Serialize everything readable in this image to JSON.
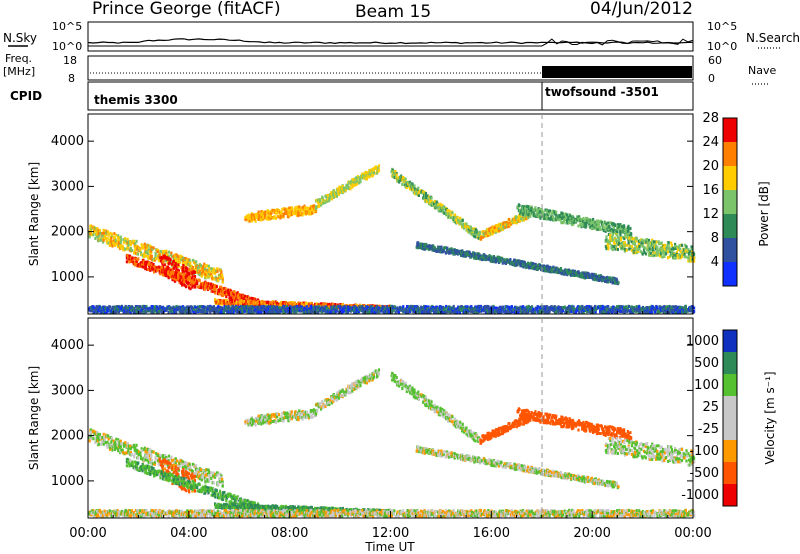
{
  "header": {
    "station": "Prince George (fitACF)",
    "beam": "Beam 15",
    "date": "04/Jun/2012"
  },
  "strip_nsky": {
    "left_label": "N.Sky",
    "left_ticks": [
      "10^5",
      "10^0"
    ],
    "right_ticks": [
      "10^5",
      "10^0"
    ],
    "right_label": "N.Search"
  },
  "strip_freq": {
    "left_label_1": "Freq.",
    "left_label_2": "[MHz]",
    "left_ticks": [
      "18",
      "8"
    ],
    "right_ticks": [
      "60",
      "0"
    ],
    "right_label": "Nave"
  },
  "strip_cpid": {
    "label": "CPID",
    "programs": [
      {
        "name": "themis 3300",
        "start_ut": "00:00",
        "end_ut": "18:00"
      },
      {
        "name": "twofsound -3501",
        "start_ut": "18:00",
        "end_ut": "24:00"
      }
    ]
  },
  "chart_data": [
    {
      "type": "heatmap",
      "title": "",
      "xlabel": "Time UT",
      "ylabel": "Slant Range [km]",
      "x_range_ut_hours": [
        0,
        24
      ],
      "x_ticks": [
        "00:00",
        "04:00",
        "08:00",
        "12:00",
        "16:00",
        "20:00",
        "00:00"
      ],
      "y_range_km": [
        180,
        4600
      ],
      "y_ticks": [
        1000,
        2000,
        3000,
        4000
      ],
      "colorbar": {
        "label": "Power [dB]",
        "ticks": [
          "4",
          "8",
          "12",
          "16",
          "20",
          "24",
          "28"
        ],
        "colors": [
          "#1030ff",
          "#3050a0",
          "#2e8b57",
          "#7cc46a",
          "#ffcc00",
          "#ff7f00",
          "#ee0000"
        ]
      }
    },
    {
      "type": "heatmap",
      "title": "",
      "xlabel": "Time UT",
      "ylabel": "Slant Range [km]",
      "x_range_ut_hours": [
        0,
        24
      ],
      "x_ticks": [
        "00:00",
        "04:00",
        "08:00",
        "12:00",
        "16:00",
        "20:00",
        "00:00"
      ],
      "y_range_km": [
        180,
        4600
      ],
      "y_ticks": [
        1000,
        2000,
        3000,
        4000
      ],
      "colorbar": {
        "label": "Velocity  [m s⁻¹]",
        "ticks": [
          "1000",
          "500",
          "100",
          "25",
          "-25",
          "-100",
          "-500",
          "-1000"
        ],
        "colors": [
          "#1030c0",
          "#2e8b57",
          "#55c030",
          "#c8c8c8",
          "#c8c8c8",
          "#ff9900",
          "#ff5500",
          "#ee0000"
        ]
      }
    }
  ],
  "echo_bands": [
    {
      "label": "e1",
      "t0": 0.0,
      "t1": 5.3,
      "r0": 2000,
      "r1": 1000,
      "w": 300,
      "power": 18,
      "vel": 20
    },
    {
      "label": "e2",
      "t0": 2.8,
      "t1": 4.2,
      "r0": 1300,
      "r1": 900,
      "w": 450,
      "power": 26,
      "vel": -150
    },
    {
      "label": "e3",
      "t0": 1.5,
      "t1": 7.0,
      "r0": 1400,
      "r1": 350,
      "w": 180,
      "power": 24,
      "vel": 80
    },
    {
      "label": "e4",
      "t0": 6.2,
      "t1": 9.0,
      "r0": 2300,
      "r1": 2500,
      "w": 200,
      "power": 20,
      "vel": 15
    },
    {
      "label": "e5",
      "t0": 9.0,
      "t1": 11.5,
      "r0": 2600,
      "r1": 3400,
      "w": 180,
      "power": 16,
      "vel": 10
    },
    {
      "label": "e6",
      "t0": 12.0,
      "t1": 15.5,
      "r0": 3300,
      "r1": 1900,
      "w": 180,
      "power": 14,
      "vel": 30
    },
    {
      "label": "e7",
      "t0": 15.5,
      "t1": 17.5,
      "r0": 1900,
      "r1": 2400,
      "w": 160,
      "power": 18,
      "vel": -200
    },
    {
      "label": "e8",
      "t0": 17.0,
      "t1": 21.5,
      "r0": 2500,
      "r1": 2000,
      "w": 220,
      "power": 12,
      "vel": -300
    },
    {
      "label": "e9",
      "t0": 20.5,
      "t1": 24.0,
      "r0": 1800,
      "r1": 1500,
      "w": 350,
      "power": 14,
      "vel": 20
    },
    {
      "label": "e10",
      "t0": 13.0,
      "t1": 21.0,
      "r0": 1700,
      "r1": 900,
      "w": 120,
      "power": 8,
      "vel": 15
    },
    {
      "label": "e11",
      "t0": 5.0,
      "t1": 12.0,
      "r0": 450,
      "r1": 300,
      "w": 100,
      "power": 22,
      "vel": 120
    },
    {
      "label": "e12",
      "t0": 0.0,
      "t1": 24.0,
      "r0": 280,
      "r1": 280,
      "w": 140,
      "power": 6,
      "vel": 0
    }
  ]
}
